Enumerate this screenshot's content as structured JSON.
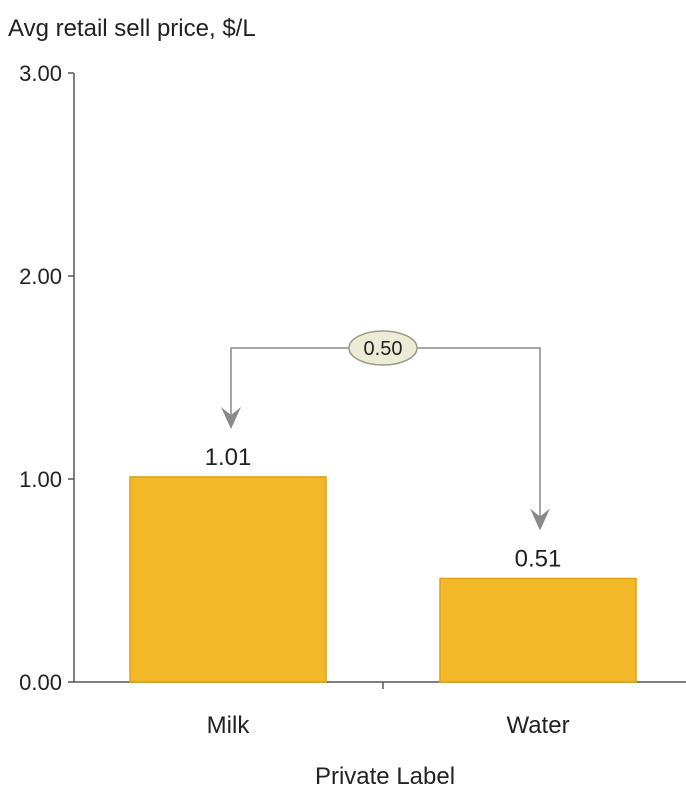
{
  "chart_data": {
    "type": "bar",
    "title": "Avg retail sell price, $/L",
    "xlabel": "Private Label",
    "ylabel": "",
    "categories": [
      "Milk",
      "Water"
    ],
    "values": [
      1.01,
      0.51
    ],
    "data_labels": [
      "1.01",
      "0.51"
    ],
    "ylim": [
      0,
      3
    ],
    "yticks": [
      0,
      1,
      2,
      3
    ],
    "ytick_labels": [
      "0.00",
      "1.00",
      "2.00",
      "3.00"
    ],
    "grid": false,
    "bar_color": "#F2B827",
    "bar_edge_color": "#E0A010",
    "annotation": {
      "type": "difference-bracket",
      "text": "0.50",
      "from": "Milk",
      "to": "Water"
    }
  }
}
